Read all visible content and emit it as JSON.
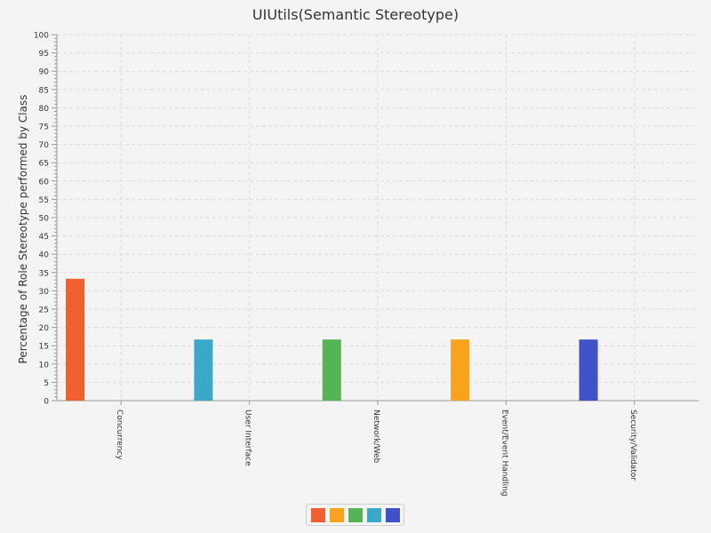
{
  "chart_data": {
    "type": "bar",
    "title": "UIUtils(Semantic Stereotype)",
    "xlabel": "",
    "ylabel": "Percentage of Role Stereotype performed by Class",
    "categories": [
      "Concurrency",
      "User Interface",
      "Network/Web",
      "Event/Event Handling",
      "Security/Validator"
    ],
    "values": [
      33.3,
      16.7,
      16.7,
      16.7,
      16.7
    ],
    "colors": [
      "#f06030",
      "#3aa8c8",
      "#55b455",
      "#f8a31b",
      "#3f52c8"
    ],
    "ylim": [
      0,
      100
    ],
    "yticks": [
      0,
      5,
      10,
      15,
      20,
      25,
      30,
      35,
      40,
      45,
      50,
      55,
      60,
      65,
      70,
      75,
      80,
      85,
      90,
      95,
      100
    ],
    "grid": true,
    "legend": {
      "placement": "bottom-center",
      "colors": [
        "#f06030",
        "#f8a31b",
        "#55b455",
        "#3aa8c8",
        "#3f52c8"
      ]
    }
  }
}
